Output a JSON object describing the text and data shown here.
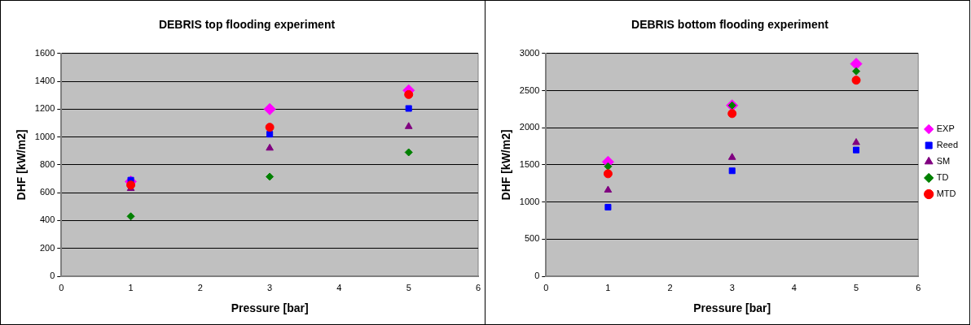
{
  "chart_data": [
    {
      "type": "scatter",
      "title": "DEBRIS top flooding experiment",
      "xlabel": "Pressure [bar]",
      "ylabel": "DHF [kW/m2]",
      "x": [
        1,
        3,
        5
      ],
      "xlim": [
        0,
        6
      ],
      "xticks": [
        0,
        1,
        2,
        3,
        4,
        5,
        6
      ],
      "ylim": [
        0,
        1600
      ],
      "yticks": [
        0,
        200,
        400,
        600,
        800,
        1000,
        1200,
        1400,
        1600
      ],
      "grid": "y",
      "legend": false,
      "series": [
        {
          "color": "#ff00ff",
          "marker": "diamond",
          "values": [
            680,
            1200,
            1335
          ]
        },
        {
          "color": "#0000ff",
          "marker": "square",
          "values": [
            690,
            1020,
            1205
          ]
        },
        {
          "color": "#800080",
          "marker": "triangle",
          "values": [
            630,
            920,
            1075
          ]
        },
        {
          "color": "#008000",
          "marker": "diamond",
          "values": [
            430,
            715,
            890
          ]
        },
        {
          "color": "#ff0000",
          "marker": "circle",
          "values": [
            655,
            1070,
            1305
          ]
        }
      ]
    },
    {
      "type": "scatter",
      "title": "DEBRIS bottom flooding experiment",
      "xlabel": "Pressure [bar]",
      "ylabel": "DHF [kW/m2]",
      "x": [
        1,
        3,
        5
      ],
      "xlim": [
        0,
        6
      ],
      "xticks": [
        0,
        1,
        2,
        3,
        4,
        5,
        6
      ],
      "ylim": [
        0,
        3000
      ],
      "yticks": [
        0,
        500,
        1000,
        1500,
        2000,
        2500,
        3000
      ],
      "grid": "y",
      "legend": "right",
      "series": [
        {
          "name": "EXP",
          "color": "#ff00ff",
          "marker": "diamond",
          "values": [
            1540,
            2300,
            2860
          ]
        },
        {
          "name": "Reed",
          "color": "#0000ff",
          "marker": "square",
          "values": [
            930,
            1420,
            1700
          ]
        },
        {
          "name": "SM",
          "color": "#800080",
          "marker": "triangle",
          "values": [
            1160,
            1600,
            1800
          ]
        },
        {
          "name": "TD",
          "color": "#008000",
          "marker": "diamond",
          "values": [
            1480,
            2300,
            2760
          ]
        },
        {
          "name": "MTD",
          "color": "#ff0000",
          "marker": "circle",
          "values": [
            1380,
            2190,
            2640
          ]
        }
      ]
    }
  ]
}
